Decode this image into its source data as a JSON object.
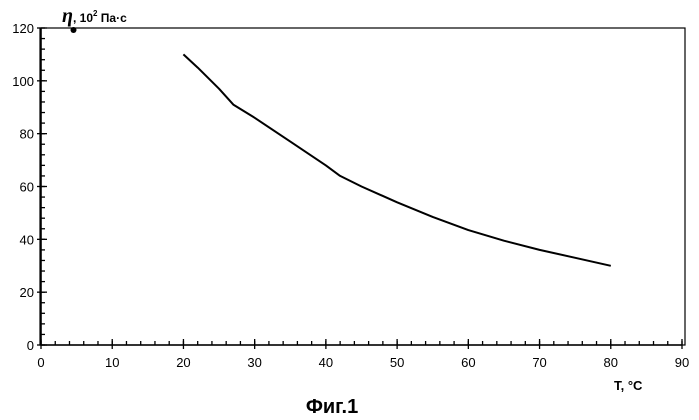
{
  "chart_data": {
    "type": "line",
    "title": "",
    "caption": "Фиг.1",
    "ylabel": {
      "symbol": "η",
      "prefix": ", 10",
      "exponent": "2",
      "unit": " Па·с"
    },
    "xlabel": "Т, °С",
    "xlim": [
      0,
      90
    ],
    "ylim": [
      0,
      120
    ],
    "x_ticks": [
      0,
      10,
      20,
      30,
      40,
      50,
      60,
      70,
      80,
      90
    ],
    "y_ticks": [
      0,
      20,
      40,
      60,
      80,
      100,
      120
    ],
    "grid": false,
    "series": [
      {
        "x": [
          20,
          22,
          25,
          27,
          30,
          35,
          40,
          42,
          45,
          50,
          55,
          60,
          65,
          70,
          75,
          80
        ],
        "y": [
          110,
          105,
          97,
          91,
          86,
          77,
          68,
          64,
          60,
          54,
          48.5,
          43.5,
          39.5,
          36,
          33,
          30
        ]
      }
    ]
  }
}
